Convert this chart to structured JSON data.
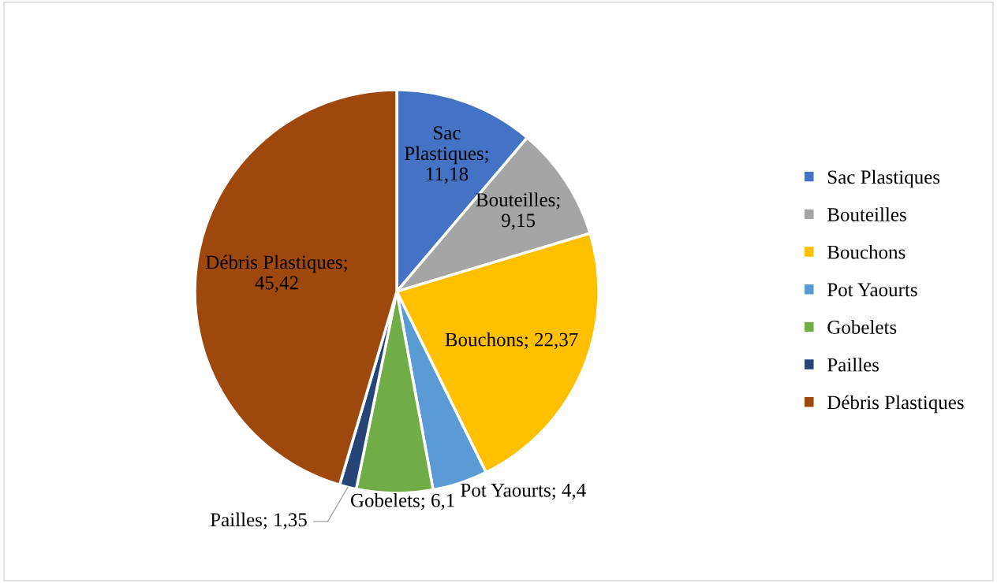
{
  "chart_data": {
    "type": "pie",
    "categories": [
      "Sac Plastiques",
      "Bouteilles",
      "Bouchons",
      "Pot Yaourts",
      "Gobelets",
      "Pailles",
      "Débris Plastiques"
    ],
    "values": [
      11.18,
      9.15,
      22.37,
      4.4,
      6.1,
      1.35,
      45.42
    ],
    "value_labels": [
      "Sac Plastiques; 11,18",
      "Bouteilles; 9,15",
      "Bouchons; 22,37",
      "Pot Yaourts; 4,4",
      "Gobelets; 6,1",
      "Pailles; 1,35",
      "Débris Plastiques; 45,42"
    ],
    "colors": [
      "#4472c4",
      "#a5a5a5",
      "#ffc000",
      "#5b9bd5",
      "#70ad47",
      "#264478",
      "#9e480e"
    ],
    "legend": "right"
  }
}
